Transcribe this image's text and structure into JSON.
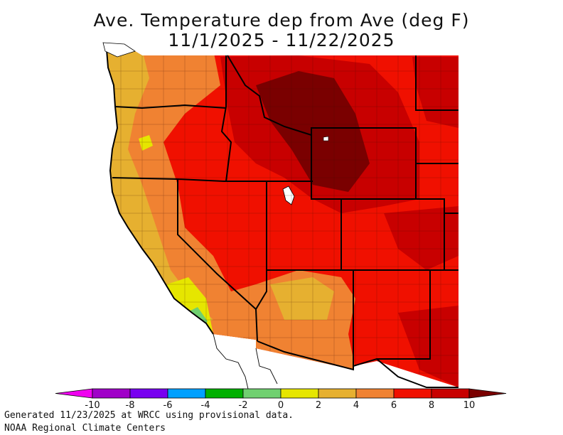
{
  "title": {
    "line1": "Ave. Temperature dep from Ave (deg F)",
    "line2": "11/1/2025 - 11/22/2025"
  },
  "legend": {
    "ticks": [
      "-10",
      "-8",
      "-6",
      "-4",
      "-2",
      "0",
      "2",
      "4",
      "6",
      "8",
      "10"
    ],
    "colors": [
      "#f000f0",
      "#a000c8",
      "#7800f0",
      "#00a0ff",
      "#00b000",
      "#70d070",
      "#e6e600",
      "#e6b030",
      "#f08232",
      "#f01000",
      "#c80000",
      "#7a0000"
    ]
  },
  "footer": {
    "line1": "Generated 11/23/2025 at WRCC using provisional data.",
    "line2": "NOAA Regional Climate Centers"
  },
  "map_colors": {
    "yellow": "#e6e600",
    "light_orange": "#e6b030",
    "orange": "#f08232",
    "red": "#f01000",
    "dark_red": "#c80000",
    "darkest_red": "#7a0000",
    "green": "#70d070",
    "water": "#ffffff"
  }
}
